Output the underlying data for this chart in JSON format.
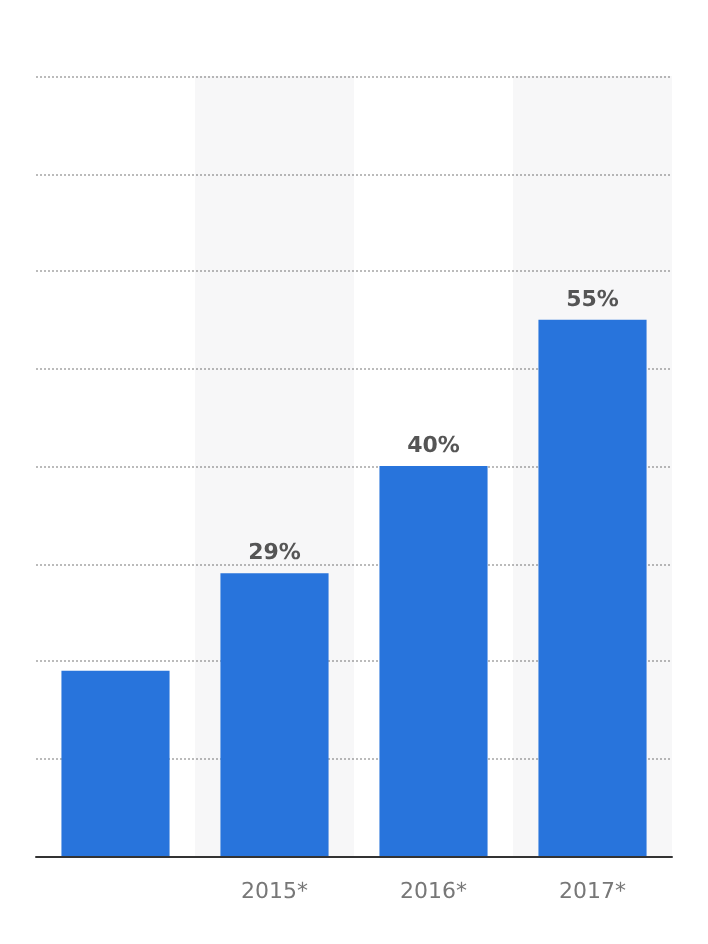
{
  "chart_data": {
    "type": "bar",
    "categories": [
      null,
      "2015*",
      "2016*",
      "2017*"
    ],
    "values": [
      19,
      29,
      40,
      55
    ],
    "value_labels": [
      null,
      "29%",
      "40%",
      "55%"
    ],
    "color": "#2874dc",
    "ylim": [
      0,
      80
    ],
    "yticks": [
      {
        "value": 0,
        "label": null
      },
      {
        "value": 10,
        "label": null
      },
      {
        "value": 20,
        "label": null
      },
      {
        "value": 30,
        "label": null
      },
      {
        "value": 40,
        "label": null
      },
      {
        "value": 50,
        "label": null
      },
      {
        "value": 60,
        "label": null
      },
      {
        "value": 70,
        "label": null
      },
      {
        "value": 80,
        "label": null
      }
    ],
    "grid": "y",
    "tick_labels": "x"
  }
}
